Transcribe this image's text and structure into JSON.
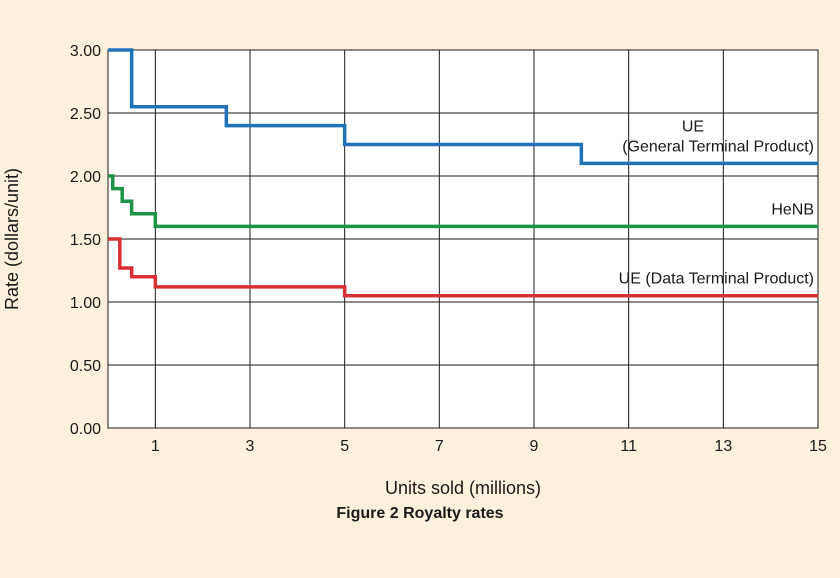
{
  "caption": "Figure 2  Royalty rates",
  "chart_data": {
    "type": "line",
    "step": true,
    "xlabel": "Units sold (millions)",
    "ylabel": "Rate (dollars/unit)",
    "xlim": [
      0,
      15
    ],
    "ylim": [
      0,
      3.0
    ],
    "x_ticks": [
      1,
      3,
      5,
      7,
      9,
      11,
      13,
      15
    ],
    "x_tick_labels": [
      "1",
      "3",
      "5",
      "7",
      "9",
      "11",
      "13",
      "15"
    ],
    "y_ticks": [
      0,
      0.5,
      1.0,
      1.5,
      2.0,
      2.5,
      3.0
    ],
    "y_tick_labels": [
      "0.00",
      "0.50",
      "1.00",
      "1.50",
      "2.00",
      "2.50",
      "3.00"
    ],
    "grid": true,
    "series": [
      {
        "name": "UE (General Terminal Product)",
        "label_lines": [
          "UE",
          "(General Terminal Product)"
        ],
        "color": "#1f74b9",
        "x": [
          0,
          0.5,
          2.5,
          5,
          10,
          15
        ],
        "y": [
          3.0,
          2.55,
          2.4,
          2.25,
          2.1,
          2.1
        ]
      },
      {
        "name": "HeNB",
        "label_lines": [
          "HeNB"
        ],
        "color": "#1e9448",
        "x": [
          0,
          0.1,
          0.3,
          0.5,
          1,
          15
        ],
        "y": [
          2.0,
          1.9,
          1.8,
          1.7,
          1.6,
          1.6
        ]
      },
      {
        "name": "UE (Data Terminal Product)",
        "label_lines": [
          "UE (Data Terminal Product)"
        ],
        "color": "#d82f35",
        "x": [
          0,
          0.25,
          0.5,
          1,
          5,
          15
        ],
        "y": [
          1.5,
          1.27,
          1.2,
          1.12,
          1.05,
          1.05
        ]
      }
    ]
  }
}
